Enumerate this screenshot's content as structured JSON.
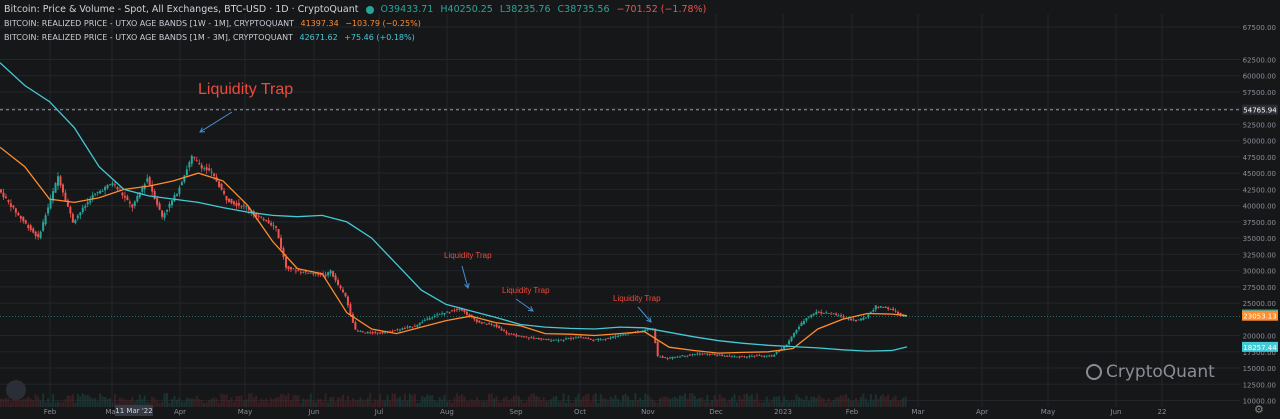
{
  "header": {
    "title": "Bitcoin: Price & Volume - Spot, All Exchanges, BTC-USD · 1D · CryptoQuant",
    "ohlc": {
      "o": "O39433.71",
      "h": "H40250.25",
      "l": "L38235.76",
      "c": "C38735.56",
      "chg": "−701.52 (−1.78%)"
    },
    "band1_label": "BITCOIN: REALIZED PRICE - UTXO AGE BANDS [1W - 1M], CRYPTOQUANT",
    "band1_val": "41397.34",
    "band1_chg": "−103.79 (−0.25%)",
    "band2_label": "BITCOIN: REALIZED PRICE - UTXO AGE BANDS [1M - 3M], CRYPTOQUANT",
    "band2_val": "42671.62",
    "band2_chg": "+75.46 (+0.18%)"
  },
  "brand": "CryptoQuant",
  "colors": {
    "up": "#26a69a",
    "down": "#ef5350",
    "orange": "#ff8c2e",
    "cyan": "#44c9d6",
    "annot": "#f04a3a"
  },
  "chart_data": {
    "type": "line",
    "xlabel": "",
    "ylabel": "",
    "x_months": [
      "Feb",
      "Mar",
      "Apr",
      "May",
      "Jun",
      "Jul",
      "Aug",
      "Sep",
      "Oct",
      "Nov",
      "Dec",
      "2023",
      "Feb",
      "Mar",
      "Apr",
      "May",
      "Jun",
      "22"
    ],
    "cursor_x_label": "11 Mar '22",
    "y_ticks": [
      "67500.00",
      "62500.00",
      "60000.00",
      "57500.00",
      "55000.00",
      "52500.00",
      "50000.00",
      "47500.00",
      "45000.00",
      "42500.00",
      "40000.00",
      "37500.00",
      "35000.00",
      "32500.00",
      "30000.00",
      "27500.00",
      "25000.00",
      "20000.00",
      "17500.00",
      "15000.00",
      "12500.00",
      "10000.00"
    ],
    "y_tick_values": [
      67500,
      62500,
      60000,
      57500,
      55000,
      52500,
      50000,
      47500,
      45000,
      42500,
      40000,
      37500,
      35000,
      32500,
      30000,
      27500,
      25000,
      20000,
      17500,
      15000,
      12500,
      10000
    ],
    "ylim": [
      9000,
      69500
    ],
    "price_line": {
      "value": 54765.94,
      "label": "54765.94"
    },
    "last_labels": [
      {
        "label": "23239.46",
        "value": 23239.46,
        "color": "#26a69a"
      },
      {
        "label": "23053.13",
        "value": 23053.13,
        "color": "#ff8c2e"
      },
      {
        "label": "18257.44",
        "value": 18257.44,
        "color": "#44c9d6"
      }
    ],
    "price_path": [
      [
        0,
        42500
      ],
      [
        4,
        38500
      ],
      [
        8,
        35000
      ],
      [
        12,
        44500
      ],
      [
        15,
        37500
      ],
      [
        19,
        41500
      ],
      [
        23,
        43500
      ],
      [
        27,
        39800
      ],
      [
        30,
        44200
      ],
      [
        33,
        38300
      ],
      [
        36,
        42000
      ],
      [
        39,
        47500
      ],
      [
        41,
        46000
      ],
      [
        43,
        45000
      ],
      [
        44,
        43800
      ],
      [
        46,
        41000
      ],
      [
        48,
        40200
      ],
      [
        50,
        39800
      ],
      [
        52,
        38300
      ],
      [
        54,
        37800
      ],
      [
        56,
        36500
      ],
      [
        58,
        30500
      ],
      [
        61,
        29800
      ],
      [
        64,
        29600
      ],
      [
        66,
        29200
      ],
      [
        67,
        30000
      ],
      [
        68,
        28400
      ],
      [
        70,
        26000
      ],
      [
        72,
        20800
      ],
      [
        74,
        20400
      ],
      [
        78,
        20500
      ],
      [
        80,
        20800
      ],
      [
        84,
        21500
      ],
      [
        87,
        22800
      ],
      [
        90,
        23500
      ],
      [
        93,
        24200
      ],
      [
        95,
        23000
      ],
      [
        97,
        22000
      ],
      [
        100,
        21600
      ],
      [
        103,
        20200
      ],
      [
        105,
        19900
      ],
      [
        108,
        19600
      ],
      [
        111,
        19300
      ],
      [
        114,
        19400
      ],
      [
        117,
        19800
      ],
      [
        120,
        19300
      ],
      [
        123,
        19600
      ],
      [
        126,
        20200
      ],
      [
        129,
        20600
      ],
      [
        132,
        21100
      ],
      [
        133,
        16800
      ],
      [
        135,
        16500
      ],
      [
        138,
        16900
      ],
      [
        141,
        17200
      ],
      [
        144,
        17100
      ],
      [
        147,
        16800
      ],
      [
        150,
        16700
      ],
      [
        153,
        16900
      ],
      [
        156,
        16800
      ],
      [
        159,
        18600
      ],
      [
        161,
        20900
      ],
      [
        163,
        22800
      ],
      [
        165,
        23600
      ],
      [
        168,
        23400
      ],
      [
        171,
        22700
      ],
      [
        173,
        22300
      ],
      [
        175,
        22800
      ],
      [
        177,
        24500
      ],
      [
        179,
        24300
      ],
      [
        181,
        23700
      ],
      [
        182,
        23100
      ],
      [
        183,
        22900
      ]
    ],
    "series": [
      {
        "name": "BITCOIN: REALIZED PRICE - UTXO AGE BANDS [1W - 1M], CRYPTOQUANT",
        "color": "#ff8c2e",
        "x": [
          0,
          5,
          10,
          15,
          20,
          25,
          30,
          35,
          40,
          45,
          50,
          55,
          60,
          65,
          70,
          75,
          80,
          85,
          90,
          95,
          100,
          105,
          110,
          115,
          120,
          125,
          130,
          135,
          140,
          145,
          150,
          155,
          160,
          165,
          170,
          175,
          180,
          183
        ],
        "y": [
          49000,
          46000,
          41000,
          40500,
          41200,
          42500,
          43000,
          43800,
          45000,
          43800,
          40000,
          34500,
          30300,
          29500,
          23500,
          21000,
          20300,
          21300,
          22300,
          23000,
          22000,
          21500,
          20300,
          20200,
          20000,
          20300,
          20600,
          18200,
          17700,
          17300,
          17400,
          17500,
          18000,
          21000,
          22500,
          23400,
          23300,
          23050
        ]
      },
      {
        "name": "BITCOIN: REALIZED PRICE - UTXO AGE BANDS [1M - 3M], CRYPTOQUANT",
        "color": "#44c9d6",
        "x": [
          0,
          5,
          10,
          15,
          20,
          25,
          30,
          35,
          40,
          45,
          50,
          55,
          60,
          65,
          70,
          75,
          80,
          85,
          90,
          95,
          100,
          105,
          110,
          115,
          120,
          125,
          130,
          135,
          140,
          145,
          150,
          155,
          160,
          165,
          170,
          175,
          180,
          183
        ],
        "y": [
          62000,
          58500,
          56000,
          52000,
          46000,
          42500,
          41500,
          41000,
          40500,
          39700,
          39000,
          38500,
          38300,
          38500,
          37500,
          35000,
          31000,
          27000,
          24800,
          23800,
          22800,
          21700,
          21300,
          21100,
          21000,
          21300,
          21200,
          20500,
          19800,
          19200,
          18800,
          18500,
          18300,
          18100,
          17800,
          17600,
          17700,
          18250
        ]
      }
    ],
    "annotations": [
      {
        "text": "Liquidity Trap",
        "big": true
      },
      {
        "text": "Liquidity Trap",
        "big": false
      },
      {
        "text": "Liquidity Trap",
        "big": false
      },
      {
        "text": "Liquidity Trap",
        "big": false
      }
    ]
  }
}
